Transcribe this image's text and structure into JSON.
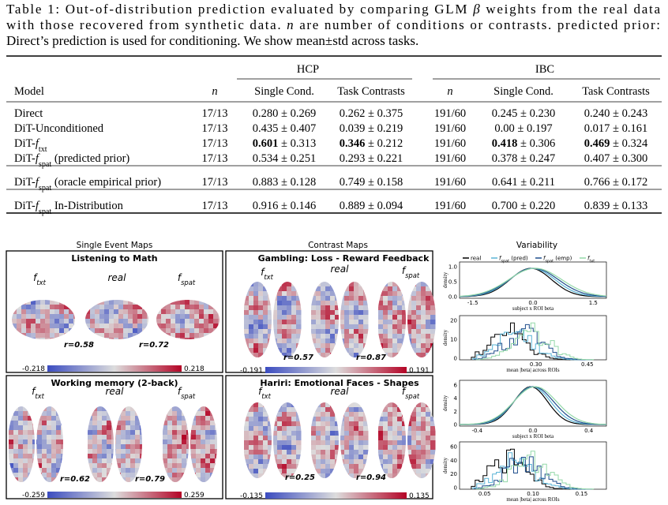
{
  "caption": [
    [
      {
        "text": "Table 1: Out-of-distribution prediction evaluated by comparing GLM "
      },
      {
        "text": "β",
        "style": "italic"
      },
      {
        "text": " weights from the real data"
      }
    ],
    [
      {
        "text": "with those recovered from synthetic data. "
      },
      {
        "text": "n",
        "style": "italic"
      },
      {
        "text": " are number of conditions or contrasts. predicted prior:"
      }
    ],
    [
      {
        "text": "Direct’s prediction is used for conditioning. We show mean±std across tasks."
      }
    ]
  ],
  "table": {
    "groups": [
      "HCP",
      "IBC"
    ],
    "columns": [
      "Model",
      [
        {
          "text": "n",
          "style": "italic"
        }
      ],
      "Single Cond.",
      "Task Contrasts",
      [
        {
          "text": "n",
          "style": "italic"
        }
      ],
      "Single Cond.",
      "Task Contrasts"
    ],
    "sections": [
      [
        {
          "model": "Direct",
          "cells": [
            "17/13",
            "0.280 ± 0.269",
            "0.262 ± 0.375",
            "191/60",
            "0.245 ± 0.230",
            "0.240 ± 0.243"
          ]
        },
        {
          "model": "DiT-Unconditioned",
          "cells": [
            "17/13",
            "0.435 ± 0.407",
            "0.039 ± 0.219",
            "191/60",
            "0.00 ± 0.197",
            "0.017 ± 0.161"
          ]
        },
        {
          "model": [
            {
              "text": "DiT-"
            },
            {
              "text": "f",
              "style": "italic"
            },
            {
              "text": "txt",
              "style": "sub"
            }
          ],
          "cells": [
            "17/13",
            [
              {
                "text": "0.601",
                "style": "bold"
              },
              {
                "text": " ± 0.313"
              }
            ],
            [
              {
                "text": "0.346",
                "style": "bold"
              },
              {
                "text": " ± 0.212"
              }
            ],
            "191/60",
            [
              {
                "text": "0.418",
                "style": "bold"
              },
              {
                "text": " ± 0.306"
              }
            ],
            [
              {
                "text": "0.469",
                "style": "bold"
              },
              {
                "text": " ± 0.324"
              }
            ]
          ]
        },
        {
          "model": [
            {
              "text": "DiT-"
            },
            {
              "text": "f",
              "style": "italic"
            },
            {
              "text": "spat",
              "style": "sub"
            },
            {
              "text": " (predicted prior)"
            }
          ],
          "cells": [
            "17/13",
            "0.534 ± 0.251",
            "0.293 ± 0.221",
            "191/60",
            "0.378 ± 0.247",
            "0.407 ± 0.300"
          ]
        }
      ],
      [
        {
          "model": [
            {
              "text": "DiT-"
            },
            {
              "text": "f",
              "style": "italic"
            },
            {
              "text": "spat",
              "style": "sub"
            },
            {
              "text": " (oracle empirical prior)"
            }
          ],
          "cells": [
            "17/13",
            "0.883 ± 0.128",
            "0.749 ± 0.158",
            "191/60",
            "0.641 ± 0.211",
            "0.766 ± 0.172"
          ]
        }
      ],
      [
        {
          "model": [
            {
              "text": "DiT-"
            },
            {
              "text": "f",
              "style": "italic"
            },
            {
              "text": "spat",
              "style": "sub"
            },
            {
              "text": " In-Distribution"
            }
          ],
          "cells": [
            "17/13",
            "0.916 ± 0.146",
            "0.889 ± 0.094",
            "191/60",
            "0.700 ± 0.220",
            "0.839 ± 0.133"
          ]
        }
      ]
    ]
  },
  "figure": {
    "sections": [
      "Single Event Maps",
      "Contrast Maps",
      "Variability"
    ],
    "panels": [
      {
        "title": "Listening to Math",
        "labels": [
          [
            {
              "text": "f",
              "style": "italic"
            },
            {
              "text": "txt",
              "style": "sub"
            }
          ],
          "real",
          [
            {
              "text": "f",
              "style": "italic"
            },
            {
              "text": "spat",
              "style": "sub"
            }
          ]
        ],
        "r": [
          "r=0.58",
          "r=0.72"
        ],
        "colorbar": [
          "-0.218",
          "0.218"
        ]
      },
      {
        "title": "Gambling: Loss - Reward Feedback",
        "labels": [
          [
            {
              "text": "f",
              "style": "italic"
            },
            {
              "text": "txt",
              "style": "sub"
            }
          ],
          "real",
          [
            {
              "text": "f",
              "style": "italic"
            },
            {
              "text": "spat",
              "style": "sub"
            }
          ]
        ],
        "r": [
          "r=0.57",
          "r=0.87"
        ],
        "colorbar": [
          "-0.191",
          "0.191"
        ]
      },
      {
        "title": "Working memory (2-back)",
        "labels": [
          [
            {
              "text": "f",
              "style": "italic"
            },
            {
              "text": "txt",
              "style": "sub"
            }
          ],
          "real",
          [
            {
              "text": "f",
              "style": "italic"
            },
            {
              "text": "spat",
              "style": "sub"
            }
          ]
        ],
        "r": [
          "r=0.62",
          "r=0.79"
        ],
        "colorbar": [
          "-0.259",
          "0.259"
        ]
      },
      {
        "title": "Hariri: Emotional Faces - Shapes",
        "labels": [
          [
            {
              "text": "f",
              "style": "italic"
            },
            {
              "text": "txt",
              "style": "sub"
            }
          ],
          "real",
          [
            {
              "text": "f",
              "style": "italic"
            },
            {
              "text": "spat",
              "style": "sub"
            }
          ]
        ],
        "r": [
          "r=0.25",
          "r=0.94"
        ],
        "colorbar": [
          "-0.135",
          "0.135"
        ]
      }
    ],
    "variability": {
      "legend": [
        {
          "label": "real",
          "color": "#000000"
        },
        {
          "label": [
            {
              "text": "f",
              "style": "italic"
            },
            {
              "text": "spat",
              "style": "sub"
            },
            {
              "text": " (pred)"
            }
          ],
          "color": "#5ab4d6"
        },
        {
          "label": [
            {
              "text": "f",
              "style": "italic"
            },
            {
              "text": "spat",
              "style": "sub"
            },
            {
              "text": " (emp)"
            }
          ],
          "color": "#1f4e8c"
        },
        {
          "label": [
            {
              "text": "f",
              "style": "italic"
            },
            {
              "text": "txt",
              "style": "sub"
            }
          ],
          "color": "#93d8a8"
        }
      ],
      "plots": [
        {
          "ylabel": "density",
          "yticks": [
            "0.0",
            "0.5",
            "1.0"
          ],
          "xticks": [
            "-1.5",
            "0.0",
            "1.5"
          ],
          "xlabel": "subject x ROI beta"
        },
        {
          "ylabel": "density",
          "yticks": [
            "0",
            "10",
            "20"
          ],
          "xticks": [
            "0.30",
            "0.45"
          ],
          "xlabel": "mean |beta| across ROIs"
        },
        {
          "ylabel": "density",
          "yticks": [
            "0",
            "2",
            "4",
            "6"
          ],
          "xticks": [
            "-0.4",
            "0.0",
            "0.4"
          ],
          "xlabel": "subject x ROI beta"
        },
        {
          "ylabel": "density",
          "yticks": [
            "0",
            "20",
            "40",
            "60"
          ],
          "xticks": [
            "0.05",
            "0.10",
            "0.15"
          ],
          "xlabel": "mean |beta| across ROIs"
        }
      ]
    }
  }
}
